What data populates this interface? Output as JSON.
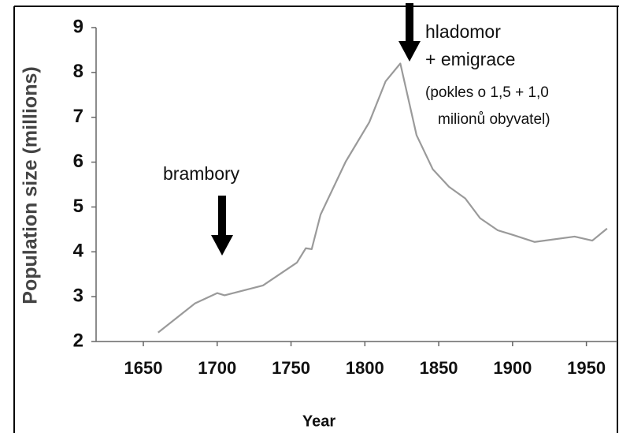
{
  "chart_data": {
    "type": "line",
    "xlabel": "Year",
    "ylabel": "Population size (millions)",
    "annotations": [
      "brambory",
      "hladomor",
      "+ emigrace",
      "(pokles o 1,5 + 1,0",
      "milionů obyvatel)"
    ],
    "x": [
      1660,
      1685,
      1700,
      1705,
      1731,
      1754,
      1760,
      1764,
      1770,
      1787,
      1803,
      1814,
      1824,
      1835,
      1846,
      1857,
      1868,
      1878,
      1890,
      1900,
      1915,
      1942,
      1954,
      1964
    ],
    "series": [
      {
        "name": "Population",
        "color": "#9a9a9a",
        "values": [
          2.2,
          2.85,
          3.08,
          3.03,
          3.25,
          3.76,
          4.08,
          4.06,
          4.83,
          6.01,
          6.89,
          7.8,
          8.2,
          6.6,
          5.84,
          5.45,
          5.19,
          4.75,
          4.48,
          4.38,
          4.22,
          4.34,
          4.25,
          4.52
        ]
      }
    ],
    "xlim": [
      1618,
      1971
    ],
    "xticks": [
      1650,
      1700,
      1750,
      1800,
      1850,
      1900,
      1950
    ],
    "ylim": [
      2,
      9
    ],
    "yticks": [
      2,
      3,
      4,
      5,
      6,
      7,
      8,
      9
    ]
  }
}
